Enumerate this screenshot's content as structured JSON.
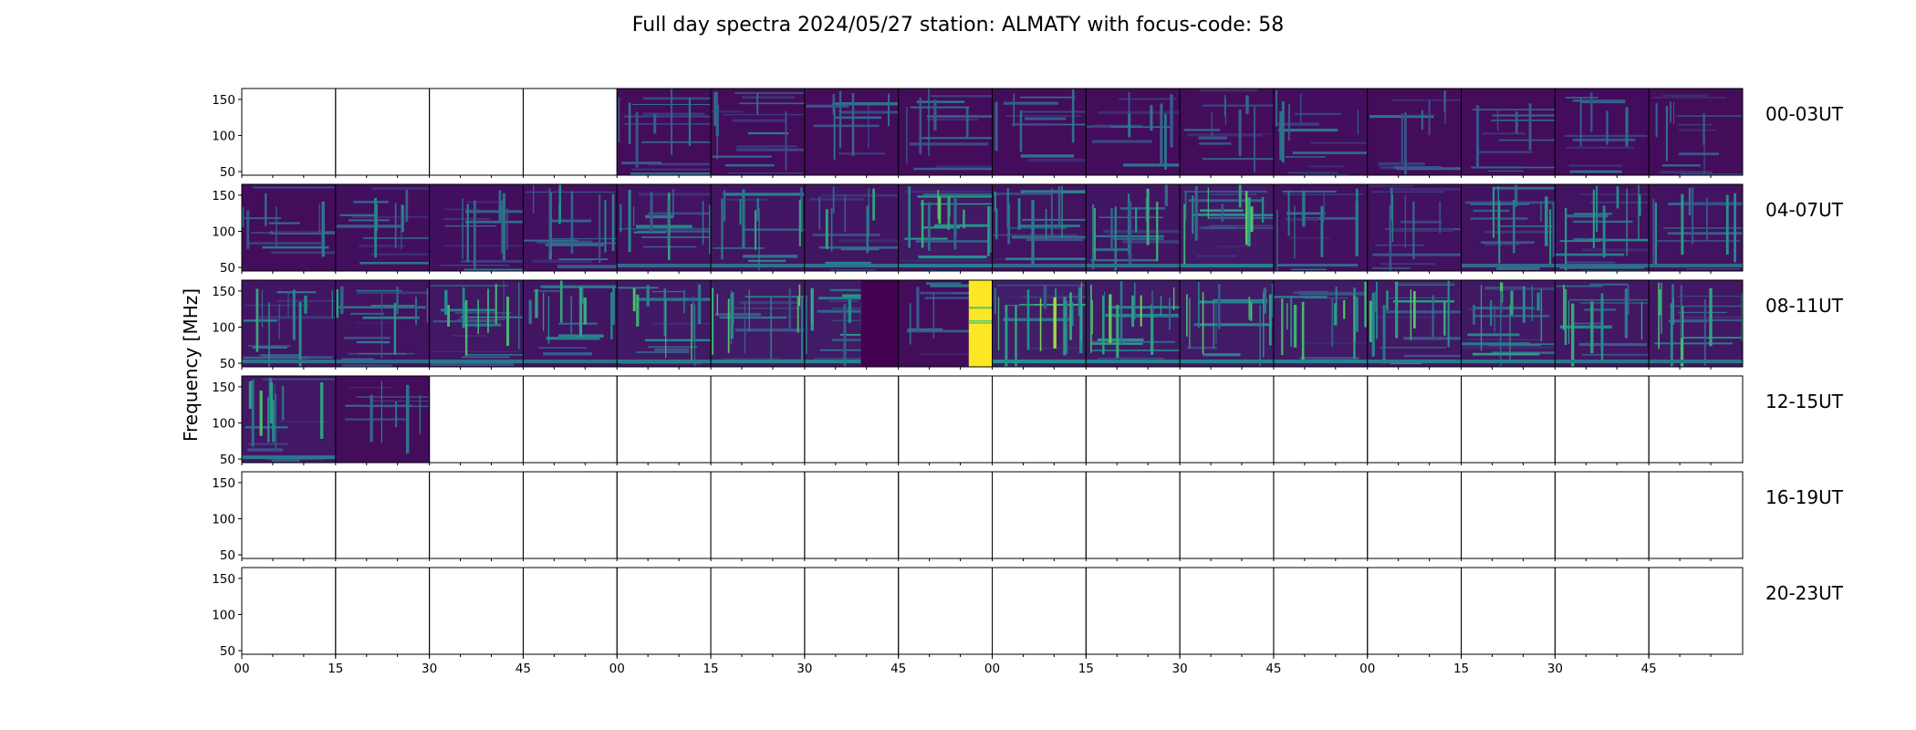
{
  "figure": {
    "title": "Full day spectra 2024/05/27 station: ALMATY with focus-code: 58",
    "ylabel": "Frequency [MHz]"
  },
  "chart_data": {
    "type": "heatmap",
    "title": "Full day spectra 2024/05/27 station: ALMATY with focus-code: 58",
    "ylabel": "Frequency [MHz]",
    "xlabel": "",
    "ylim": [
      45,
      165
    ],
    "y_ticks": [
      "50",
      "100",
      "150"
    ],
    "x_ticks": [
      "00",
      "15",
      "30",
      "45",
      "00",
      "15",
      "30",
      "45",
      "00",
      "15",
      "30",
      "45",
      "00",
      "15",
      "30",
      "45"
    ],
    "colormap": [
      "#440154",
      "#3b528b",
      "#21918c",
      "#5ec962",
      "#fde725"
    ],
    "row_labels": [
      "00-03UT",
      "04-07UT",
      "08-11UT",
      "12-15UT",
      "16-19UT",
      "20-23UT"
    ],
    "segment_minutes": 15,
    "panels_per_row": 16,
    "rows": [
      {
        "label": "00-03UT",
        "panels": [
          {
            "has_data": false
          },
          {
            "has_data": false
          },
          {
            "has_data": false
          },
          {
            "has_data": false
          },
          {
            "has_data": true,
            "activity": 0.15
          },
          {
            "has_data": true,
            "activity": 0.15
          },
          {
            "has_data": true,
            "activity": 0.15
          },
          {
            "has_data": true,
            "activity": 0.15
          },
          {
            "has_data": true,
            "activity": 0.15
          },
          {
            "has_data": true,
            "activity": 0.15
          },
          {
            "has_data": true,
            "activity": 0.15
          },
          {
            "has_data": true,
            "activity": 0.18
          },
          {
            "has_data": true,
            "activity": 0.15
          },
          {
            "has_data": true,
            "activity": 0.15
          },
          {
            "has_data": true,
            "activity": 0.12
          },
          {
            "has_data": true,
            "activity": 0.15
          }
        ]
      },
      {
        "label": "04-07UT",
        "panels": [
          {
            "has_data": true,
            "activity": 0.15
          },
          {
            "has_data": true,
            "activity": 0.2
          },
          {
            "has_data": true,
            "activity": 0.2
          },
          {
            "has_data": true,
            "activity": 0.25
          },
          {
            "has_data": true,
            "activity": 0.3
          },
          {
            "has_data": true,
            "activity": 0.35
          },
          {
            "has_data": true,
            "activity": 0.35
          },
          {
            "has_data": true,
            "activity": 0.45
          },
          {
            "has_data": true,
            "activity": 0.3
          },
          {
            "has_data": true,
            "activity": 0.35
          },
          {
            "has_data": true,
            "activity": 0.45
          },
          {
            "has_data": true,
            "activity": 0.25
          },
          {
            "has_data": true,
            "activity": 0.25
          },
          {
            "has_data": true,
            "activity": 0.3
          },
          {
            "has_data": true,
            "activity": 0.3
          },
          {
            "has_data": true,
            "activity": 0.3
          }
        ]
      },
      {
        "label": "08-11UT",
        "panels": [
          {
            "has_data": true,
            "activity": 0.35
          },
          {
            "has_data": true,
            "activity": 0.3
          },
          {
            "has_data": true,
            "activity": 0.4
          },
          {
            "has_data": true,
            "activity": 0.35
          },
          {
            "has_data": true,
            "activity": 0.45
          },
          {
            "has_data": true,
            "activity": 0.5
          },
          {
            "has_data": true,
            "activity": 0.5,
            "gap_from": 0.6
          },
          {
            "has_data": true,
            "activity": 0.15,
            "saturated_from": 0.75
          },
          {
            "has_data": true,
            "activity": 0.6
          },
          {
            "has_data": true,
            "activity": 0.5
          },
          {
            "has_data": true,
            "activity": 0.5
          },
          {
            "has_data": true,
            "activity": 0.5
          },
          {
            "has_data": true,
            "activity": 0.45
          },
          {
            "has_data": true,
            "activity": 0.45
          },
          {
            "has_data": true,
            "activity": 0.4
          },
          {
            "has_data": true,
            "activity": 0.4
          }
        ]
      },
      {
        "label": "12-15UT",
        "panels": [
          {
            "has_data": true,
            "activity": 0.4
          },
          {
            "has_data": true,
            "activity": 0.15
          },
          {
            "has_data": false
          },
          {
            "has_data": false
          },
          {
            "has_data": false
          },
          {
            "has_data": false
          },
          {
            "has_data": false
          },
          {
            "has_data": false
          },
          {
            "has_data": false
          },
          {
            "has_data": false
          },
          {
            "has_data": false
          },
          {
            "has_data": false
          },
          {
            "has_data": false
          },
          {
            "has_data": false
          },
          {
            "has_data": false
          },
          {
            "has_data": false
          }
        ]
      },
      {
        "label": "16-19UT",
        "panels": [
          {
            "has_data": false
          },
          {
            "has_data": false
          },
          {
            "has_data": false
          },
          {
            "has_data": false
          },
          {
            "has_data": false
          },
          {
            "has_data": false
          },
          {
            "has_data": false
          },
          {
            "has_data": false
          },
          {
            "has_data": false
          },
          {
            "has_data": false
          },
          {
            "has_data": false
          },
          {
            "has_data": false
          },
          {
            "has_data": false
          },
          {
            "has_data": false
          },
          {
            "has_data": false
          },
          {
            "has_data": false
          }
        ]
      },
      {
        "label": "20-23UT",
        "panels": [
          {
            "has_data": false
          },
          {
            "has_data": false
          },
          {
            "has_data": false
          },
          {
            "has_data": false
          },
          {
            "has_data": false
          },
          {
            "has_data": false
          },
          {
            "has_data": false
          },
          {
            "has_data": false
          },
          {
            "has_data": false
          },
          {
            "has_data": false
          },
          {
            "has_data": false
          },
          {
            "has_data": false
          },
          {
            "has_data": false
          },
          {
            "has_data": false
          },
          {
            "has_data": false
          },
          {
            "has_data": false
          }
        ]
      }
    ]
  }
}
